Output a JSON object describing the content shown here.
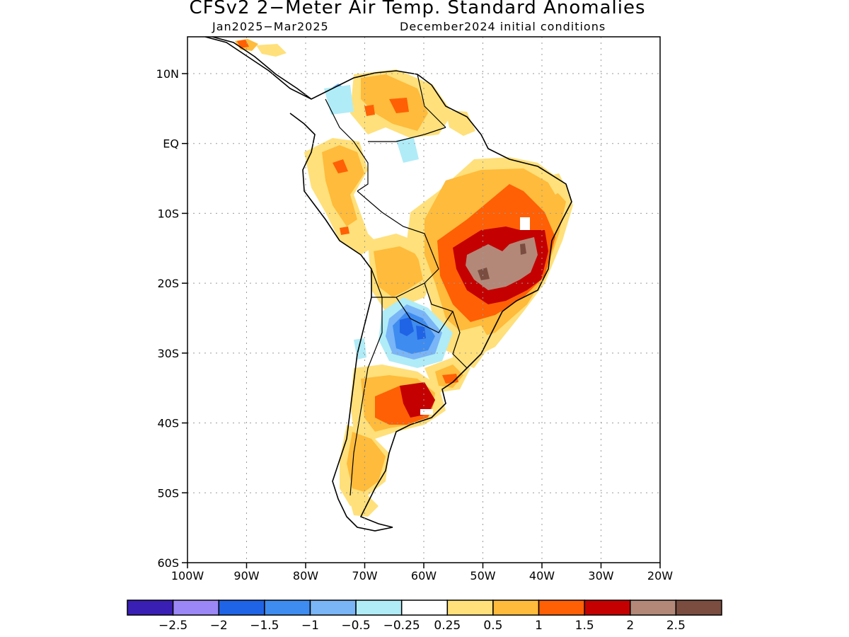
{
  "title": "CFSv2 2−Meter Air Temp. Standard Anomalies",
  "subtitle_period": "Jan2025−Mar2025",
  "subtitle_init": "December2024 initial conditions",
  "lat_labels": [
    "10N",
    "EQ",
    "10S",
    "20S",
    "30S",
    "40S",
    "50S",
    "60S"
  ],
  "lon_labels": [
    "100W",
    "90W",
    "80W",
    "70W",
    "60W",
    "50W",
    "40W",
    "30W",
    "20W"
  ],
  "colorbar": {
    "colors": [
      "#3a1fb4",
      "#9b87f5",
      "#1f63e6",
      "#3e8cf0",
      "#79b5f7",
      "#b0ecf7",
      "#ffffff",
      "#ffe07a",
      "#ffbb3b",
      "#ff6005",
      "#c40000",
      "#b38878",
      "#7a4d40"
    ],
    "labels": [
      "−2.5",
      "−2",
      "−1.5",
      "−1",
      "−0.5",
      "−0.25",
      "0.25",
      "0.5",
      "1",
      "1.5",
      "2",
      "2.5"
    ]
  },
  "colors": {
    "c025": "#ffe07a",
    "c05": "#ffbb3b",
    "c1": "#ff6005",
    "c15": "#c40000",
    "c2": "#b38878",
    "c25": "#7a4d40",
    "m025": "#b0ecf7",
    "m05": "#79b5f7",
    "m1": "#3e8cf0",
    "m15": "#1f63e6"
  }
}
